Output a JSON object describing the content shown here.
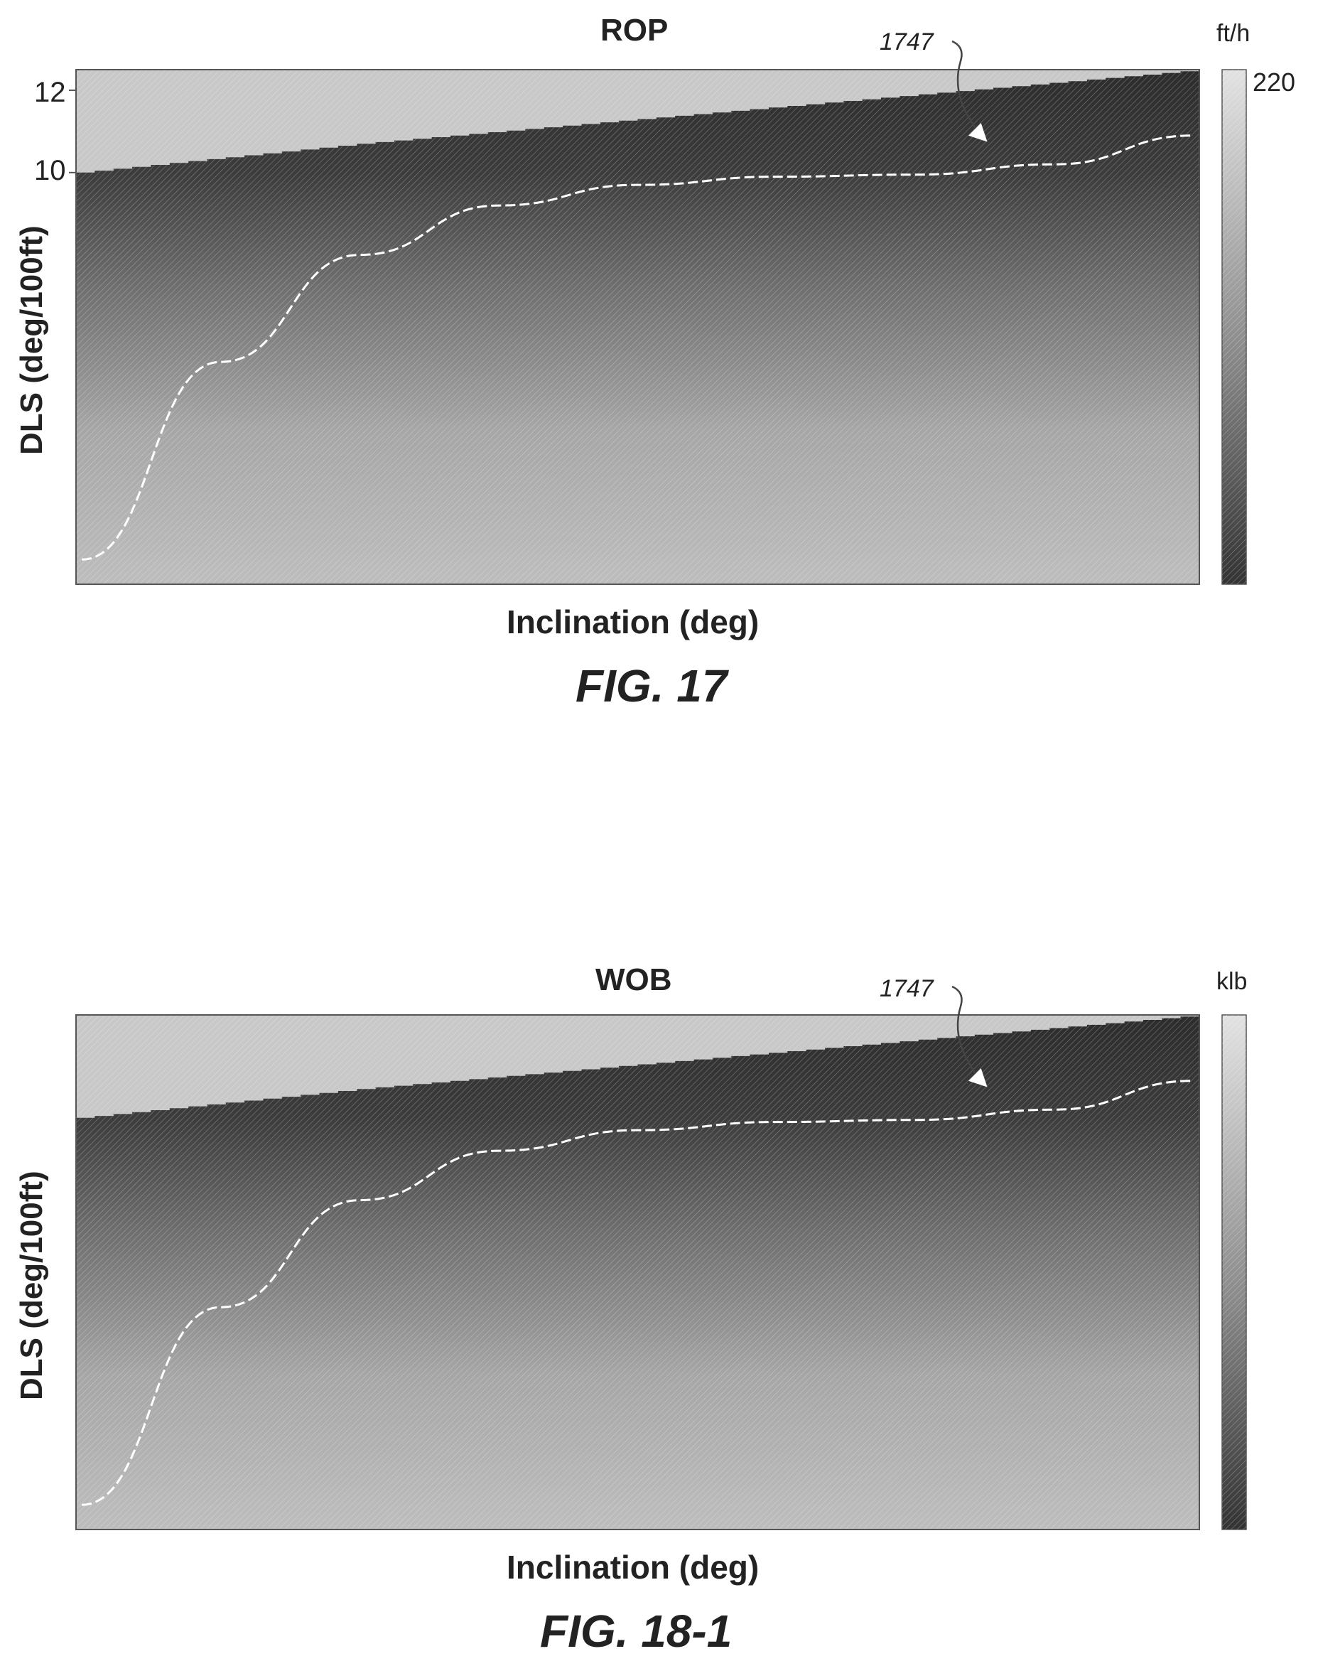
{
  "figures": [
    {
      "id": "fig17",
      "title": "ROP",
      "unit": "ft/h",
      "ylabel": "DLS (deg/100ft)",
      "xlabel": "Inclination (deg)",
      "caption": "FIG. 17",
      "y_ticks": [
        "12",
        "10"
      ],
      "colorbar_max": "220",
      "ref": "1747"
    },
    {
      "id": "fig18",
      "title": "WOB",
      "unit": "klb",
      "ylabel": "DLS (deg/100ft)",
      "xlabel": "Inclination (deg)",
      "caption": "FIG. 18-1",
      "y_ticks": [],
      "colorbar_max": "",
      "ref": "1747"
    }
  ],
  "chart_data": [
    {
      "type": "heatmap",
      "title": "ROP",
      "xlabel": "Inclination (deg)",
      "ylabel": "DLS (deg/100ft)",
      "colorbar_unit": "ft/h",
      "colorbar_max": 220,
      "y_ticks": [
        12,
        10
      ],
      "ylim": [
        0,
        12.5
      ],
      "colormap": "grayscale: light = high, dark = low",
      "boundary_curve_dls": [
        10.0,
        10.35,
        10.7,
        11.0,
        11.3,
        11.6,
        11.9,
        12.2,
        12.5
      ],
      "white_curve_dls": [
        0.6,
        5.4,
        8.0,
        9.2,
        9.7,
        9.9,
        9.95,
        10.2,
        10.9
      ],
      "annotation": "1747"
    },
    {
      "type": "heatmap",
      "title": "WOB",
      "xlabel": "Inclination (deg)",
      "ylabel": "DLS (deg/100ft)",
      "colorbar_unit": "klb",
      "colormap": "grayscale: light = high, dark = low",
      "boundary_curve_dls": [
        10.0,
        10.35,
        10.7,
        11.0,
        11.3,
        11.6,
        11.9,
        12.2,
        12.5
      ],
      "white_curve_dls": [
        0.6,
        5.4,
        8.0,
        9.2,
        9.7,
        9.9,
        9.95,
        10.2,
        10.9
      ],
      "annotation": "1747"
    }
  ]
}
